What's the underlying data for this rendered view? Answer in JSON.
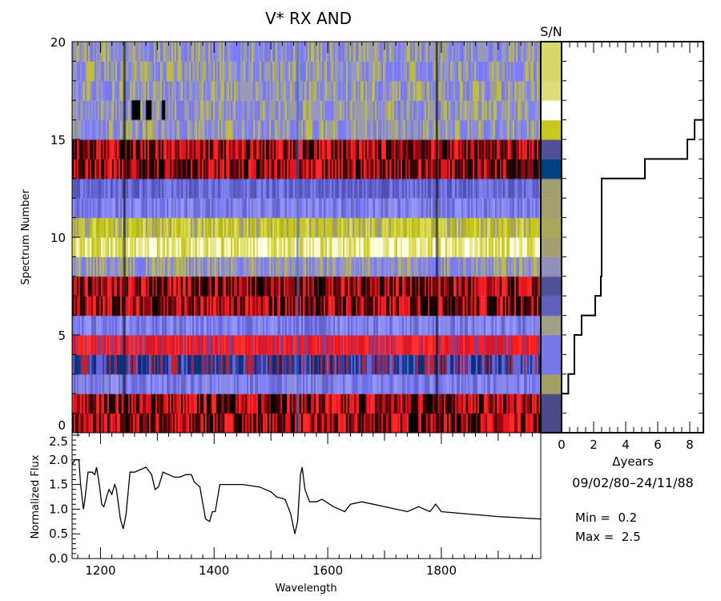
{
  "chart_data": [
    {
      "type": "heatmap",
      "title": "V*  RX AND",
      "ylabel": "Spectrum Number",
      "ylim": [
        0,
        20
      ],
      "yticks": [
        "0",
        "5",
        "10",
        "15",
        "20"
      ],
      "xlim": [
        1150,
        1975
      ],
      "row_palettes": [
        "rb",
        "rb",
        "lav",
        "nav",
        "red",
        "lav",
        "rb",
        "rb",
        "lavy",
        "yelw",
        "yel",
        "lav",
        "lavd",
        "rb",
        "rb",
        "lavy",
        "lavy",
        "lavy",
        "lavy",
        "lavy"
      ],
      "sn_label": "S/N",
      "sn_colors": [
        "#4a4a88",
        "#4a4a88",
        "#a0a060",
        "#7878e8",
        "#7878e8",
        "#a0a088",
        "#6060c0",
        "#505098",
        "#9090b8",
        "#a0a070",
        "#a8a858",
        "#a0a070",
        "#a0a070",
        "#004080",
        "#505098",
        "#c8c820",
        "#ffffff",
        "#dcdc78",
        "#d8d868",
        "#d8d868"
      ]
    },
    {
      "type": "line",
      "xlabel": "Δyears",
      "xlim": [
        0,
        8.85
      ],
      "xticks": [
        "0",
        "2",
        "4",
        "6",
        "8"
      ],
      "date_range": "09/02/80–24/11/88",
      "years_per_spectrum": [
        0,
        0,
        0.42,
        0.8,
        0.8,
        1.25,
        2.1,
        2.45,
        2.5,
        2.5,
        2.5,
        2.5,
        2.5,
        5.2,
        7.85,
        8.3,
        8.85,
        8.85,
        8.85,
        8.85
      ]
    },
    {
      "type": "line",
      "xlabel": "Wavelength",
      "ylabel": "Normalized Flux",
      "xlim": [
        1150,
        1975
      ],
      "ylim": [
        0,
        2.5
      ],
      "xticks": [
        "1200",
        "1400",
        "1600",
        "1800"
      ],
      "yticks": [
        "0.0",
        "0.5",
        "1.0",
        "1.5",
        "2.0",
        "2.5"
      ],
      "points": [
        [
          1150,
          1.9
        ],
        [
          1155,
          2.0
        ],
        [
          1162,
          2.0
        ],
        [
          1165,
          1.5
        ],
        [
          1170,
          1.0
        ],
        [
          1172,
          1.15
        ],
        [
          1178,
          1.75
        ],
        [
          1185,
          1.75
        ],
        [
          1190,
          1.7
        ],
        [
          1193,
          1.85
        ],
        [
          1198,
          1.5
        ],
        [
          1202,
          1.1
        ],
        [
          1206,
          1.05
        ],
        [
          1212,
          1.3
        ],
        [
          1215,
          1.4
        ],
        [
          1220,
          1.3
        ],
        [
          1225,
          1.5
        ],
        [
          1228,
          1.4
        ],
        [
          1235,
          0.8
        ],
        [
          1240,
          0.6
        ],
        [
          1245,
          0.9
        ],
        [
          1252,
          1.75
        ],
        [
          1260,
          1.75
        ],
        [
          1270,
          1.8
        ],
        [
          1280,
          1.85
        ],
        [
          1290,
          1.7
        ],
        [
          1296,
          1.4
        ],
        [
          1302,
          1.45
        ],
        [
          1310,
          1.75
        ],
        [
          1320,
          1.7
        ],
        [
          1330,
          1.65
        ],
        [
          1340,
          1.65
        ],
        [
          1350,
          1.7
        ],
        [
          1360,
          1.7
        ],
        [
          1365,
          1.55
        ],
        [
          1375,
          1.45
        ],
        [
          1385,
          0.8
        ],
        [
          1392,
          0.75
        ],
        [
          1397,
          0.95
        ],
        [
          1402,
          0.95
        ],
        [
          1410,
          1.5
        ],
        [
          1420,
          1.5
        ],
        [
          1450,
          1.5
        ],
        [
          1480,
          1.45
        ],
        [
          1500,
          1.35
        ],
        [
          1510,
          1.25
        ],
        [
          1525,
          1.2
        ],
        [
          1535,
          0.9
        ],
        [
          1542,
          0.5
        ],
        [
          1547,
          0.75
        ],
        [
          1552,
          1.7
        ],
        [
          1555,
          1.85
        ],
        [
          1560,
          1.4
        ],
        [
          1568,
          1.15
        ],
        [
          1580,
          1.15
        ],
        [
          1590,
          1.2
        ],
        [
          1610,
          1.05
        ],
        [
          1630,
          0.95
        ],
        [
          1640,
          1.1
        ],
        [
          1660,
          1.15
        ],
        [
          1700,
          1.05
        ],
        [
          1720,
          1.0
        ],
        [
          1740,
          0.95
        ],
        [
          1760,
          1.05
        ],
        [
          1780,
          0.95
        ],
        [
          1790,
          1.1
        ],
        [
          1800,
          0.95
        ],
        [
          1850,
          0.9
        ],
        [
          1900,
          0.85
        ],
        [
          1975,
          0.8
        ]
      ]
    }
  ],
  "stats": {
    "min": "Min =  0.2",
    "max": "Max =  2.5"
  }
}
